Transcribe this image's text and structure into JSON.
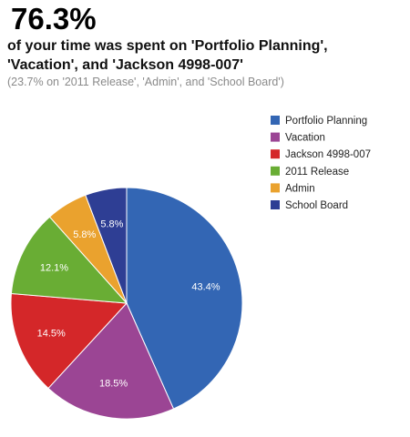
{
  "header": {
    "headline": "76.3%",
    "subhead_line1": "of your time was spent on 'Portfolio Planning',",
    "subhead_line2": "'Vacation', and 'Jackson 4998-007'",
    "note": "(23.7% on '2011 Release', 'Admin', and 'School Board')"
  },
  "chart_data": {
    "type": "pie",
    "legend_position": "right",
    "slices": [
      {
        "name": "Portfolio Planning",
        "value": 43.4,
        "label": "43.4%",
        "color": "#3366b4"
      },
      {
        "name": "Vacation",
        "value": 18.5,
        "label": "18.5%",
        "color": "#9b4594"
      },
      {
        "name": "Jackson 4998-007",
        "value": 14.5,
        "label": "14.5%",
        "color": "#d42729"
      },
      {
        "name": "2011 Release",
        "value": 12.1,
        "label": "12.1%",
        "color": "#69ad34"
      },
      {
        "name": "Admin",
        "value": 5.8,
        "label": "5.8%",
        "color": "#eaa22e"
      },
      {
        "name": "School Board",
        "value": 5.8,
        "label": "5.8%",
        "color": "#2e3e94"
      }
    ]
  }
}
